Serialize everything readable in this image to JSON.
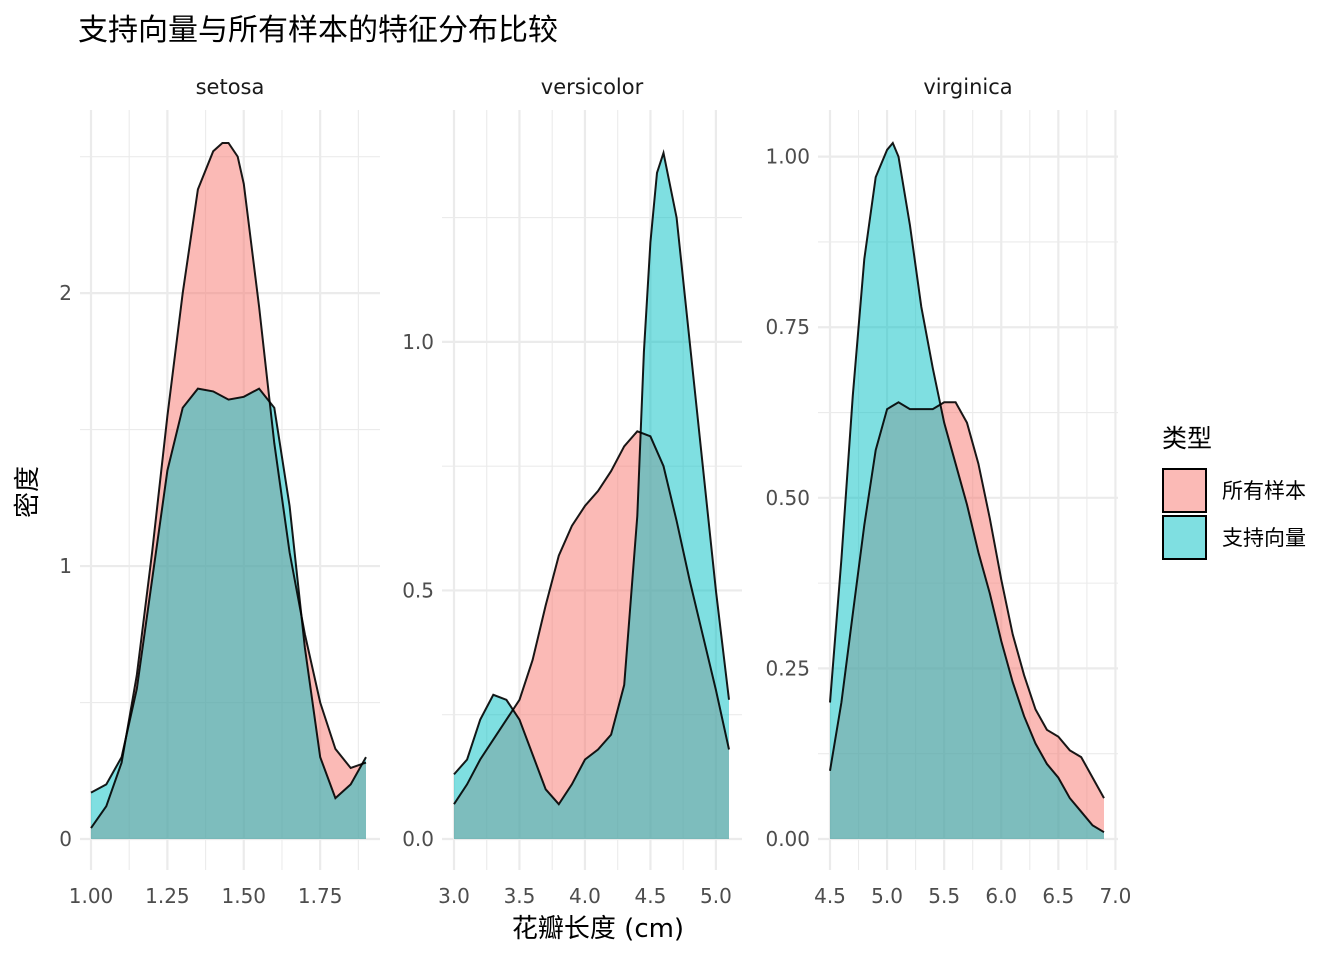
{
  "chart_data": {
    "type": "area",
    "title": "支持向量与所有样本的特征分布比较",
    "xlabel": "花瓣长度 (cm)",
    "ylabel": "密度",
    "legend": {
      "title": "类型",
      "placement": "right",
      "entries": [
        {
          "name": "所有样本",
          "color": "#F8766D"
        },
        {
          "name": "支持向量",
          "color": "#00BFC4"
        }
      ]
    },
    "grid": true,
    "panels": [
      {
        "name": "setosa",
        "xlim": [
          1.0,
          1.9
        ],
        "ylim": [
          0,
          2.55
        ],
        "xticks": [
          1.0,
          1.25,
          1.5,
          1.75
        ],
        "xtick_labels": [
          "1.00",
          "1.25",
          "1.50",
          "1.75"
        ],
        "yticks": [
          0,
          1,
          2
        ],
        "ytick_labels": [
          "0",
          "1",
          "2"
        ],
        "series": [
          {
            "name": "所有样本",
            "color": "#F8766D",
            "x": [
              1.0,
              1.05,
              1.1,
              1.15,
              1.2,
              1.25,
              1.3,
              1.35,
              1.4,
              1.43,
              1.45,
              1.48,
              1.5,
              1.55,
              1.6,
              1.65,
              1.7,
              1.75,
              1.8,
              1.85,
              1.9
            ],
            "y": [
              0.04,
              0.12,
              0.28,
              0.6,
              1.05,
              1.55,
              2.0,
              2.38,
              2.52,
              2.55,
              2.55,
              2.5,
              2.4,
              1.95,
              1.45,
              1.05,
              0.75,
              0.5,
              0.33,
              0.26,
              0.28
            ]
          },
          {
            "name": "支持向量",
            "color": "#00BFC4",
            "x": [
              1.0,
              1.05,
              1.1,
              1.15,
              1.2,
              1.25,
              1.3,
              1.35,
              1.4,
              1.45,
              1.5,
              1.55,
              1.6,
              1.65,
              1.7,
              1.75,
              1.8,
              1.85,
              1.9
            ],
            "y": [
              0.17,
              0.2,
              0.3,
              0.55,
              0.95,
              1.35,
              1.58,
              1.65,
              1.64,
              1.61,
              1.62,
              1.65,
              1.58,
              1.22,
              0.7,
              0.3,
              0.15,
              0.2,
              0.3
            ]
          }
        ]
      },
      {
        "name": "versicolor",
        "xlim": [
          3.0,
          5.1
        ],
        "ylim": [
          0,
          1.4
        ],
        "xticks": [
          3.0,
          3.5,
          4.0,
          4.5,
          5.0
        ],
        "xtick_labels": [
          "3.0",
          "3.5",
          "4.0",
          "4.5",
          "5.0"
        ],
        "yticks": [
          0.0,
          0.5,
          1.0
        ],
        "ytick_labels": [
          "0.0",
          "0.5",
          "1.0"
        ],
        "series": [
          {
            "name": "所有样本",
            "color": "#F8766D",
            "x": [
              3.0,
              3.1,
              3.2,
              3.3,
              3.4,
              3.5,
              3.6,
              3.7,
              3.8,
              3.9,
              4.0,
              4.1,
              4.2,
              4.3,
              4.4,
              4.5,
              4.6,
              4.7,
              4.8,
              4.9,
              5.0,
              5.1
            ],
            "y": [
              0.07,
              0.11,
              0.16,
              0.2,
              0.24,
              0.28,
              0.36,
              0.47,
              0.57,
              0.63,
              0.67,
              0.7,
              0.74,
              0.79,
              0.82,
              0.81,
              0.75,
              0.64,
              0.52,
              0.41,
              0.3,
              0.18
            ]
          },
          {
            "name": "支持向量",
            "color": "#00BFC4",
            "x": [
              3.0,
              3.1,
              3.2,
              3.3,
              3.4,
              3.5,
              3.6,
              3.7,
              3.8,
              3.9,
              4.0,
              4.1,
              4.2,
              4.3,
              4.4,
              4.45,
              4.5,
              4.55,
              4.6,
              4.7,
              4.8,
              4.9,
              5.0,
              5.1
            ],
            "y": [
              0.13,
              0.16,
              0.24,
              0.29,
              0.28,
              0.24,
              0.17,
              0.1,
              0.07,
              0.11,
              0.16,
              0.18,
              0.21,
              0.31,
              0.65,
              0.98,
              1.2,
              1.34,
              1.38,
              1.25,
              1.0,
              0.75,
              0.5,
              0.28
            ]
          }
        ]
      },
      {
        "name": "virginica",
        "xlim": [
          4.5,
          6.9
        ],
        "ylim": [
          0,
          1.02
        ],
        "xticks": [
          4.5,
          5.0,
          5.5,
          6.0,
          6.5,
          7.0
        ],
        "xtick_labels": [
          "4.5",
          "5.0",
          "5.5",
          "6.0",
          "6.5",
          "7.0"
        ],
        "yticks": [
          0.0,
          0.25,
          0.5,
          0.75,
          1.0
        ],
        "ytick_labels": [
          "0.00",
          "0.25",
          "0.50",
          "0.75",
          "1.00"
        ],
        "series": [
          {
            "name": "所有样本",
            "color": "#F8766D",
            "x": [
              4.5,
              4.6,
              4.7,
              4.8,
              4.9,
              5.0,
              5.1,
              5.2,
              5.3,
              5.4,
              5.5,
              5.6,
              5.7,
              5.8,
              5.9,
              6.0,
              6.1,
              6.2,
              6.3,
              6.4,
              6.5,
              6.6,
              6.7,
              6.8,
              6.9
            ],
            "y": [
              0.1,
              0.2,
              0.33,
              0.46,
              0.57,
              0.63,
              0.64,
              0.63,
              0.63,
              0.63,
              0.64,
              0.64,
              0.61,
              0.55,
              0.47,
              0.38,
              0.3,
              0.24,
              0.19,
              0.16,
              0.15,
              0.13,
              0.12,
              0.09,
              0.06
            ]
          },
          {
            "name": "支持向量",
            "color": "#00BFC4",
            "x": [
              4.5,
              4.6,
              4.7,
              4.8,
              4.9,
              5.0,
              5.05,
              5.1,
              5.2,
              5.3,
              5.4,
              5.5,
              5.6,
              5.7,
              5.8,
              5.9,
              6.0,
              6.1,
              6.2,
              6.3,
              6.4,
              6.5,
              6.6,
              6.7,
              6.8,
              6.9
            ],
            "y": [
              0.2,
              0.41,
              0.65,
              0.85,
              0.97,
              1.01,
              1.02,
              1.0,
              0.9,
              0.78,
              0.69,
              0.61,
              0.55,
              0.49,
              0.42,
              0.36,
              0.29,
              0.23,
              0.18,
              0.14,
              0.11,
              0.09,
              0.06,
              0.04,
              0.02,
              0.01
            ]
          }
        ]
      }
    ]
  }
}
